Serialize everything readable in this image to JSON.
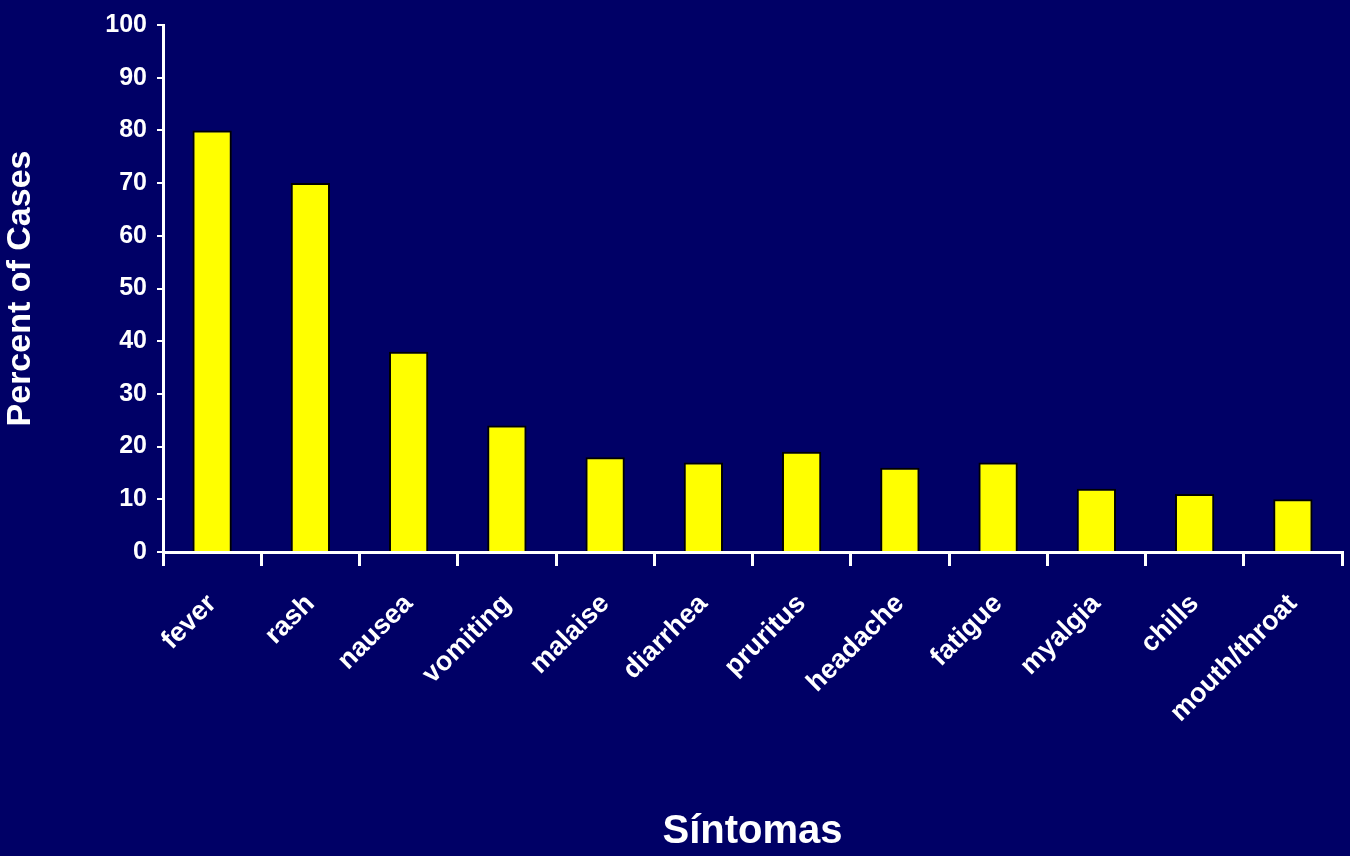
{
  "chart_data": {
    "type": "bar",
    "xlabel": "Síntomas",
    "ylabel": "Percent of Cases",
    "categories": [
      "fever",
      "rash",
      "nausea",
      "vomiting",
      "malaise",
      "diarrhea",
      "pruritus",
      "headache",
      "fatigue",
      "myalgia",
      "chills",
      "mouth/throat"
    ],
    "values": [
      80,
      70,
      38,
      24,
      18,
      17,
      19,
      16,
      17,
      12,
      11,
      10
    ],
    "color": "#ffff00",
    "ylim": [
      0,
      100
    ],
    "yticks": [
      0,
      10,
      20,
      30,
      40,
      50,
      60,
      70,
      80,
      90,
      100
    ],
    "grid": false,
    "legend": false
  }
}
